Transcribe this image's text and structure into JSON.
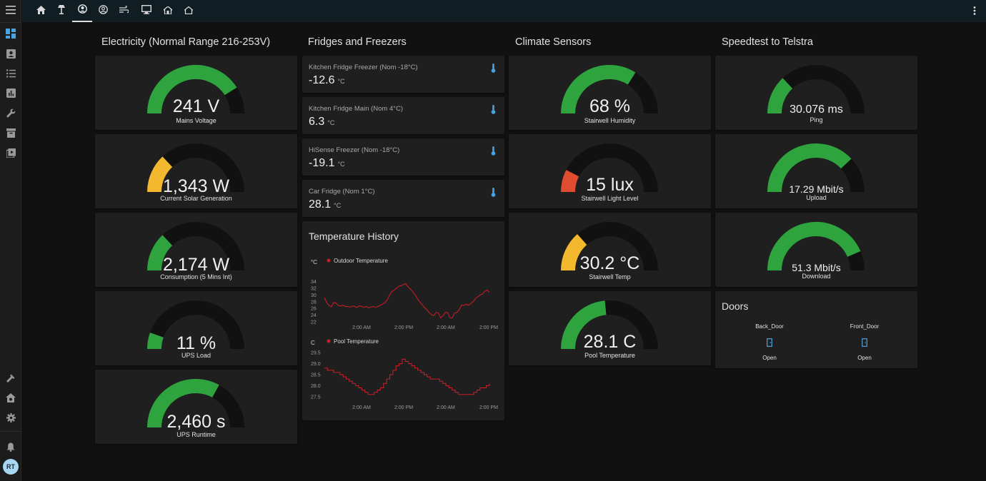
{
  "sidebar": {
    "items": [
      {
        "icon": "dashboard-icon",
        "active": true
      },
      {
        "icon": "account-box-icon"
      },
      {
        "icon": "format-list-bulleted-icon"
      },
      {
        "icon": "chart-box-icon"
      },
      {
        "icon": "wrench-icon"
      },
      {
        "icon": "archive-icon"
      },
      {
        "icon": "play-box-multiple-icon"
      }
    ],
    "bottom": [
      {
        "icon": "hammer-icon"
      },
      {
        "icon": "home-gear-icon"
      },
      {
        "icon": "cog-icon"
      },
      {
        "icon": "bell-icon"
      }
    ],
    "avatar_initials": "RT"
  },
  "topbar": {
    "tabs": [
      {
        "icon": "home-icon"
      },
      {
        "icon": "lamp-icon"
      },
      {
        "icon": "account-circle-icon",
        "active": true
      },
      {
        "icon": "account-circle-outline-icon"
      },
      {
        "icon": "weather-windy-icon"
      },
      {
        "icon": "monitor-icon"
      },
      {
        "icon": "home-variant-icon"
      },
      {
        "icon": "home-outline-icon"
      }
    ]
  },
  "columns": {
    "electricity": "Electricity (Normal Range 216-253V)",
    "fridges": "Fridges and Freezers",
    "climate": "Climate Sensors",
    "speedtest": "Speedtest to Telstra"
  },
  "colors": {
    "green": "#2fa43e",
    "amber": "#f4b82f",
    "red": "#df4c2f",
    "track": "#111111",
    "card": "#1f1f1f"
  },
  "gauges": [
    {
      "value": "241 V",
      "label": "Mains Voltage",
      "fraction": 0.82,
      "color": "green"
    },
    {
      "value": "1,343 W",
      "label": "Current Solar Generation",
      "fraction": 0.26,
      "color": "amber"
    },
    {
      "value": "2,174 W",
      "label": "Consumption (5 Mins Int)",
      "fraction": 0.26,
      "color": "green"
    },
    {
      "value": "11 %",
      "label": "UPS Load",
      "fraction": 0.11,
      "color": "green"
    },
    {
      "value": "2,460 s",
      "label": "UPS Runtime",
      "fraction": 0.66,
      "color": "green"
    },
    {
      "value": "68 %",
      "label": "Stairwell Humidity",
      "fraction": 0.68,
      "color": "green"
    },
    {
      "value": "15 lux",
      "label": "Stairwell Light Level",
      "fraction": 0.15,
      "color": "red"
    },
    {
      "value": "30.2 °C",
      "label": "Stairwell Temp",
      "fraction": 0.27,
      "color": "amber"
    },
    {
      "value": "28.1 C",
      "label": "Pool Temperature",
      "fraction": 0.47,
      "color": "green"
    },
    {
      "value": "30.076 ms",
      "label": "Ping",
      "fraction": 0.26,
      "color": "green"
    },
    {
      "value": "17.29 Mbit/s",
      "label": "Upload",
      "fraction": 0.76,
      "color": "green"
    },
    {
      "value": "51.3 Mbit/s",
      "label": "Download",
      "fraction": 0.87,
      "color": "green"
    }
  ],
  "fridges": [
    {
      "name": "Kitchen Fridge Freezer (Nom -18°C)",
      "value": "-12.6",
      "unit": "°C",
      "icon": "thermometer-icon"
    },
    {
      "name": "Kitchen Fridge Main (Nom 4°C)",
      "value": "6.3",
      "unit": "°C",
      "icon": "thermometer-icon"
    },
    {
      "name": "HiSense Freezer (Nom -18°C)",
      "value": "-19.1",
      "unit": "°C",
      "icon": "thermometer-icon"
    },
    {
      "name": "Car Fridge (Nom 1°C)",
      "value": "28.1",
      "unit": "°C",
      "icon": "thermometer-icon"
    }
  ],
  "history": {
    "title": "Temperature History",
    "chart_data": [
      {
        "type": "line",
        "unit": "°C",
        "series": [
          {
            "name": "Outdoor Temperature",
            "color": "#c31d27",
            "values": [
              29.2,
              27.8,
              26.9,
              26.5,
              27.8,
              27.6,
              26.9,
              26.7,
              27.0,
              26.6,
              26.6,
              26.4,
              26.7,
              26.6,
              26.3,
              26.8,
              26.6,
              26.3,
              26.6,
              26.2,
              26.4,
              26.6,
              26.3,
              26.6,
              26.9,
              27.3,
              27.7,
              28.6,
              29.9,
              31.0,
              31.5,
              32.0,
              32.6,
              32.8,
              33.1,
              33.4,
              32.5,
              31.8,
              31.0,
              30.1,
              28.9,
              28.0,
              27.2,
              26.3,
              25.7,
              24.8,
              24.2,
              23.8,
              24.8,
              24.7,
              23.2,
              23.8,
              24.8,
              24.8,
              23.2,
              23.2,
              24.6,
              24.8,
              25.6,
              27.0,
              26.9,
              27.3,
              26.9,
              27.5,
              28.0,
              29.0,
              29.5,
              30.0,
              30.3,
              31.1,
              31.5,
              30.8
            ]
          }
        ],
        "x_ticks": [
          "2:00 AM",
          "2:00 PM",
          "2:00 AM",
          "2:00 PM"
        ],
        "y_ticks": [
          "34",
          "32",
          "30",
          "28",
          "26",
          "24",
          "22"
        ],
        "ylim": [
          22,
          35
        ]
      },
      {
        "type": "line",
        "unit": "C",
        "series": [
          {
            "name": "Pool Temperature",
            "color": "#c31d27",
            "values": [
              28.8,
              28.7,
              28.7,
              28.6,
              28.6,
              28.5,
              28.4,
              28.3,
              28.2,
              28.1,
              28.0,
              27.9,
              27.8,
              27.7,
              27.6,
              27.6,
              27.7,
              27.8,
              27.9,
              28.1,
              28.3,
              28.5,
              28.7,
              28.9,
              29.0,
              29.2,
              29.1,
              29.0,
              28.9,
              28.8,
              28.7,
              28.6,
              28.5,
              28.4,
              28.3,
              28.3,
              28.3,
              28.2,
              28.1,
              28.0,
              27.9,
              27.8,
              27.7,
              27.6,
              27.6,
              27.6,
              27.6,
              27.6,
              27.7,
              27.8,
              27.9,
              27.9,
              28.0,
              28.1
            ]
          }
        ],
        "x_ticks": [
          "2:00 AM",
          "2:00 PM",
          "2:00 AM",
          "2:00 PM"
        ],
        "y_ticks": [
          "29.5",
          "29.0",
          "28.5",
          "28.0",
          "27.5"
        ],
        "ylim": [
          27.3,
          29.6
        ]
      }
    ]
  },
  "doors": {
    "title": "Doors",
    "items": [
      {
        "name": "Back_Door",
        "state": "Open",
        "icon": "door-open-icon"
      },
      {
        "name": "Front_Door",
        "state": "Open",
        "icon": "door-open-icon"
      }
    ]
  }
}
